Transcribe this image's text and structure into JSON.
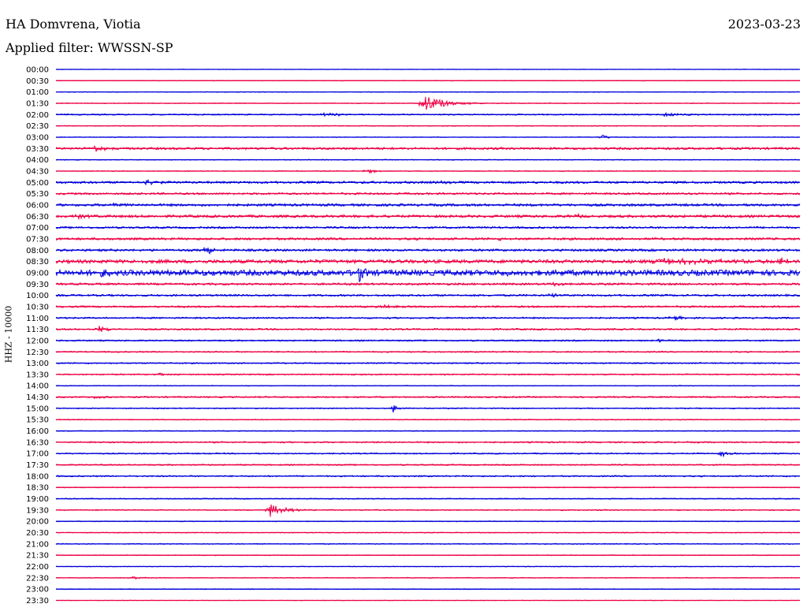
{
  "header": {
    "station": "HA Domvrena, Viotia",
    "date": "2023-03-23",
    "filter": "Applied filter: WWSSN-SP"
  },
  "channel_label": "HHZ - 10000",
  "colors": {
    "blue": "#0000dd",
    "red": "#ee0044"
  },
  "chart_data": {
    "type": "line",
    "title": "HA Domvrena, Viotia",
    "ylabel": "HHZ - 10000",
    "x_unit": "minutes within row (0-30)",
    "row_labels": [
      "00:00",
      "00:30",
      "01:00",
      "01:30",
      "02:00",
      "02:30",
      "03:00",
      "03:30",
      "04:00",
      "04:30",
      "05:00",
      "05:30",
      "06:00",
      "06:30",
      "07:00",
      "07:30",
      "08:00",
      "08:30",
      "09:00",
      "09:30",
      "10:00",
      "10:30",
      "11:00",
      "11:30",
      "12:00",
      "12:30",
      "13:00",
      "13:30",
      "14:00",
      "14:30",
      "15:00",
      "15:30",
      "16:00",
      "16:30",
      "17:00",
      "17:30",
      "18:00",
      "18:30",
      "19:00",
      "19:30",
      "20:00",
      "20:30",
      "21:00",
      "21:30",
      "22:00",
      "22:30",
      "23:00",
      "23:30"
    ],
    "row_colors": [
      "blue",
      "red"
    ],
    "noise_level": [
      0.3,
      0.4,
      0.4,
      0.5,
      0.8,
      0.5,
      0.4,
      1.4,
      0.5,
      0.5,
      1.4,
      1.2,
      1.5,
      1.6,
      1.2,
      1.4,
      1.4,
      2.2,
      3.5,
      1.3,
      1.2,
      1.1,
      1.0,
      1.0,
      0.9,
      0.8,
      0.8,
      0.8,
      0.5,
      0.9,
      0.7,
      0.6,
      0.5,
      0.9,
      0.8,
      0.8,
      0.9,
      0.6,
      0.6,
      0.7,
      0.5,
      0.5,
      0.6,
      0.5,
      0.4,
      0.5,
      0.5,
      0.3
    ],
    "events": [
      {
        "row": "01:30",
        "minute": 14.8,
        "amplitude": 12,
        "duration_min": 1.6
      },
      {
        "row": "02:00",
        "minute": 10.8,
        "amplitude": 3,
        "duration_min": 1.2
      },
      {
        "row": "02:00",
        "minute": 24.5,
        "amplitude": 3,
        "duration_min": 1.3
      },
      {
        "row": "03:00",
        "minute": 22.0,
        "amplitude": 5,
        "duration_min": 0.4
      },
      {
        "row": "03:30",
        "minute": 1.5,
        "amplitude": 4,
        "duration_min": 1.2
      },
      {
        "row": "04:30",
        "minute": 12.5,
        "amplitude": 3,
        "duration_min": 1.0
      },
      {
        "row": "05:00",
        "minute": 3.6,
        "amplitude": 4,
        "duration_min": 0.8
      },
      {
        "row": "05:00",
        "minute": 15.5,
        "amplitude": 3,
        "duration_min": 0.5
      },
      {
        "row": "06:00",
        "minute": 2.2,
        "amplitude": 4,
        "duration_min": 0.6
      },
      {
        "row": "06:30",
        "minute": 0.9,
        "amplitude": 3,
        "duration_min": 0.6
      },
      {
        "row": "06:30",
        "minute": 20.8,
        "amplitude": 4,
        "duration_min": 0.6
      },
      {
        "row": "07:30",
        "minute": 17.9,
        "amplitude": 3,
        "duration_min": 0.8
      },
      {
        "row": "08:00",
        "minute": 6.1,
        "amplitude": 7,
        "duration_min": 0.4
      },
      {
        "row": "08:30",
        "minute": 24.2,
        "amplitude": 4,
        "duration_min": 4.5
      },
      {
        "row": "08:30",
        "minute": 29.2,
        "amplitude": 6,
        "duration_min": 0.8
      },
      {
        "row": "09:00",
        "minute": 1.9,
        "amplitude": 7,
        "duration_min": 0.3
      },
      {
        "row": "09:00",
        "minute": 12.2,
        "amplitude": 14,
        "duration_min": 0.4
      },
      {
        "row": "09:00",
        "minute": 18.3,
        "amplitude": 7,
        "duration_min": 0.4
      },
      {
        "row": "09:30",
        "minute": 20.0,
        "amplitude": 3,
        "duration_min": 1.2
      },
      {
        "row": "10:00",
        "minute": 20.0,
        "amplitude": 4,
        "duration_min": 0.4
      },
      {
        "row": "10:30",
        "minute": 13.2,
        "amplitude": 4,
        "duration_min": 0.7
      },
      {
        "row": "11:00",
        "minute": 24.8,
        "amplitude": 5,
        "duration_min": 0.6
      },
      {
        "row": "11:30",
        "minute": 1.7,
        "amplitude": 4,
        "duration_min": 0.8
      },
      {
        "row": "12:00",
        "minute": 24.3,
        "amplitude": 3,
        "duration_min": 0.5
      },
      {
        "row": "13:30",
        "minute": 4.1,
        "amplitude": 4,
        "duration_min": 0.5
      },
      {
        "row": "14:30",
        "minute": 1.5,
        "amplitude": 3,
        "duration_min": 0.8
      },
      {
        "row": "15:00",
        "minute": 13.6,
        "amplitude": 7,
        "duration_min": 0.3
      },
      {
        "row": "17:00",
        "minute": 26.8,
        "amplitude": 5,
        "duration_min": 0.6
      },
      {
        "row": "19:30",
        "minute": 8.6,
        "amplitude": 9,
        "duration_min": 1.2
      },
      {
        "row": "22:30",
        "minute": 3.0,
        "amplitude": 2,
        "duration_min": 1.0
      }
    ]
  }
}
